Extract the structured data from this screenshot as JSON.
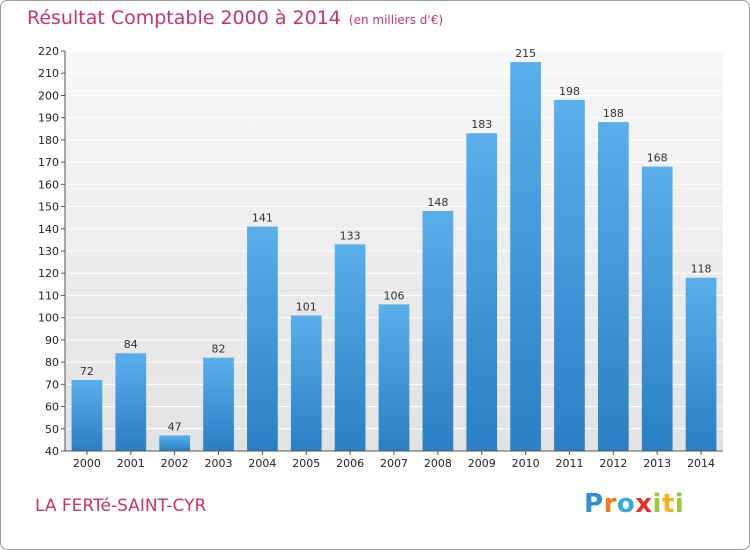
{
  "header": {
    "title": "Résultat Comptable 2000 à 2014",
    "subtitle": "(en milliers d'€)"
  },
  "commune": "LA FERTé-SAINT-CYR",
  "logo": {
    "letters": [
      "P",
      "r",
      "o",
      "x",
      "i",
      "t",
      "i"
    ]
  },
  "colors": {
    "title": "#cc3366",
    "bar_light": "#5aaeea",
    "bar_dark": "#2a7fc4",
    "background_top": "#f7f7f7",
    "background_bottom": "#e2e2e2",
    "grid": "#ffffff"
  },
  "chart_data": {
    "type": "bar",
    "categories": [
      "2000",
      "2001",
      "2002",
      "2003",
      "2004",
      "2005",
      "2006",
      "2007",
      "2008",
      "2009",
      "2010",
      "2011",
      "2012",
      "2013",
      "2014"
    ],
    "values": [
      72,
      84,
      47,
      82,
      141,
      101,
      133,
      106,
      148,
      183,
      215,
      198,
      188,
      168,
      118
    ],
    "data_labels": [
      "72",
      "84",
      "47",
      "82",
      "141",
      "101",
      "133",
      "106",
      "148",
      "183",
      "215",
      "198",
      "188",
      "168",
      "118"
    ],
    "title": "Résultat Comptable 2000 à 2014",
    "subtitle": "(en milliers d'€)",
    "ylim": [
      40,
      220
    ],
    "yticks": [
      40,
      50,
      60,
      70,
      80,
      90,
      100,
      110,
      120,
      130,
      140,
      150,
      160,
      170,
      180,
      190,
      200,
      210,
      220
    ],
    "grid": true,
    "legend": "none"
  }
}
